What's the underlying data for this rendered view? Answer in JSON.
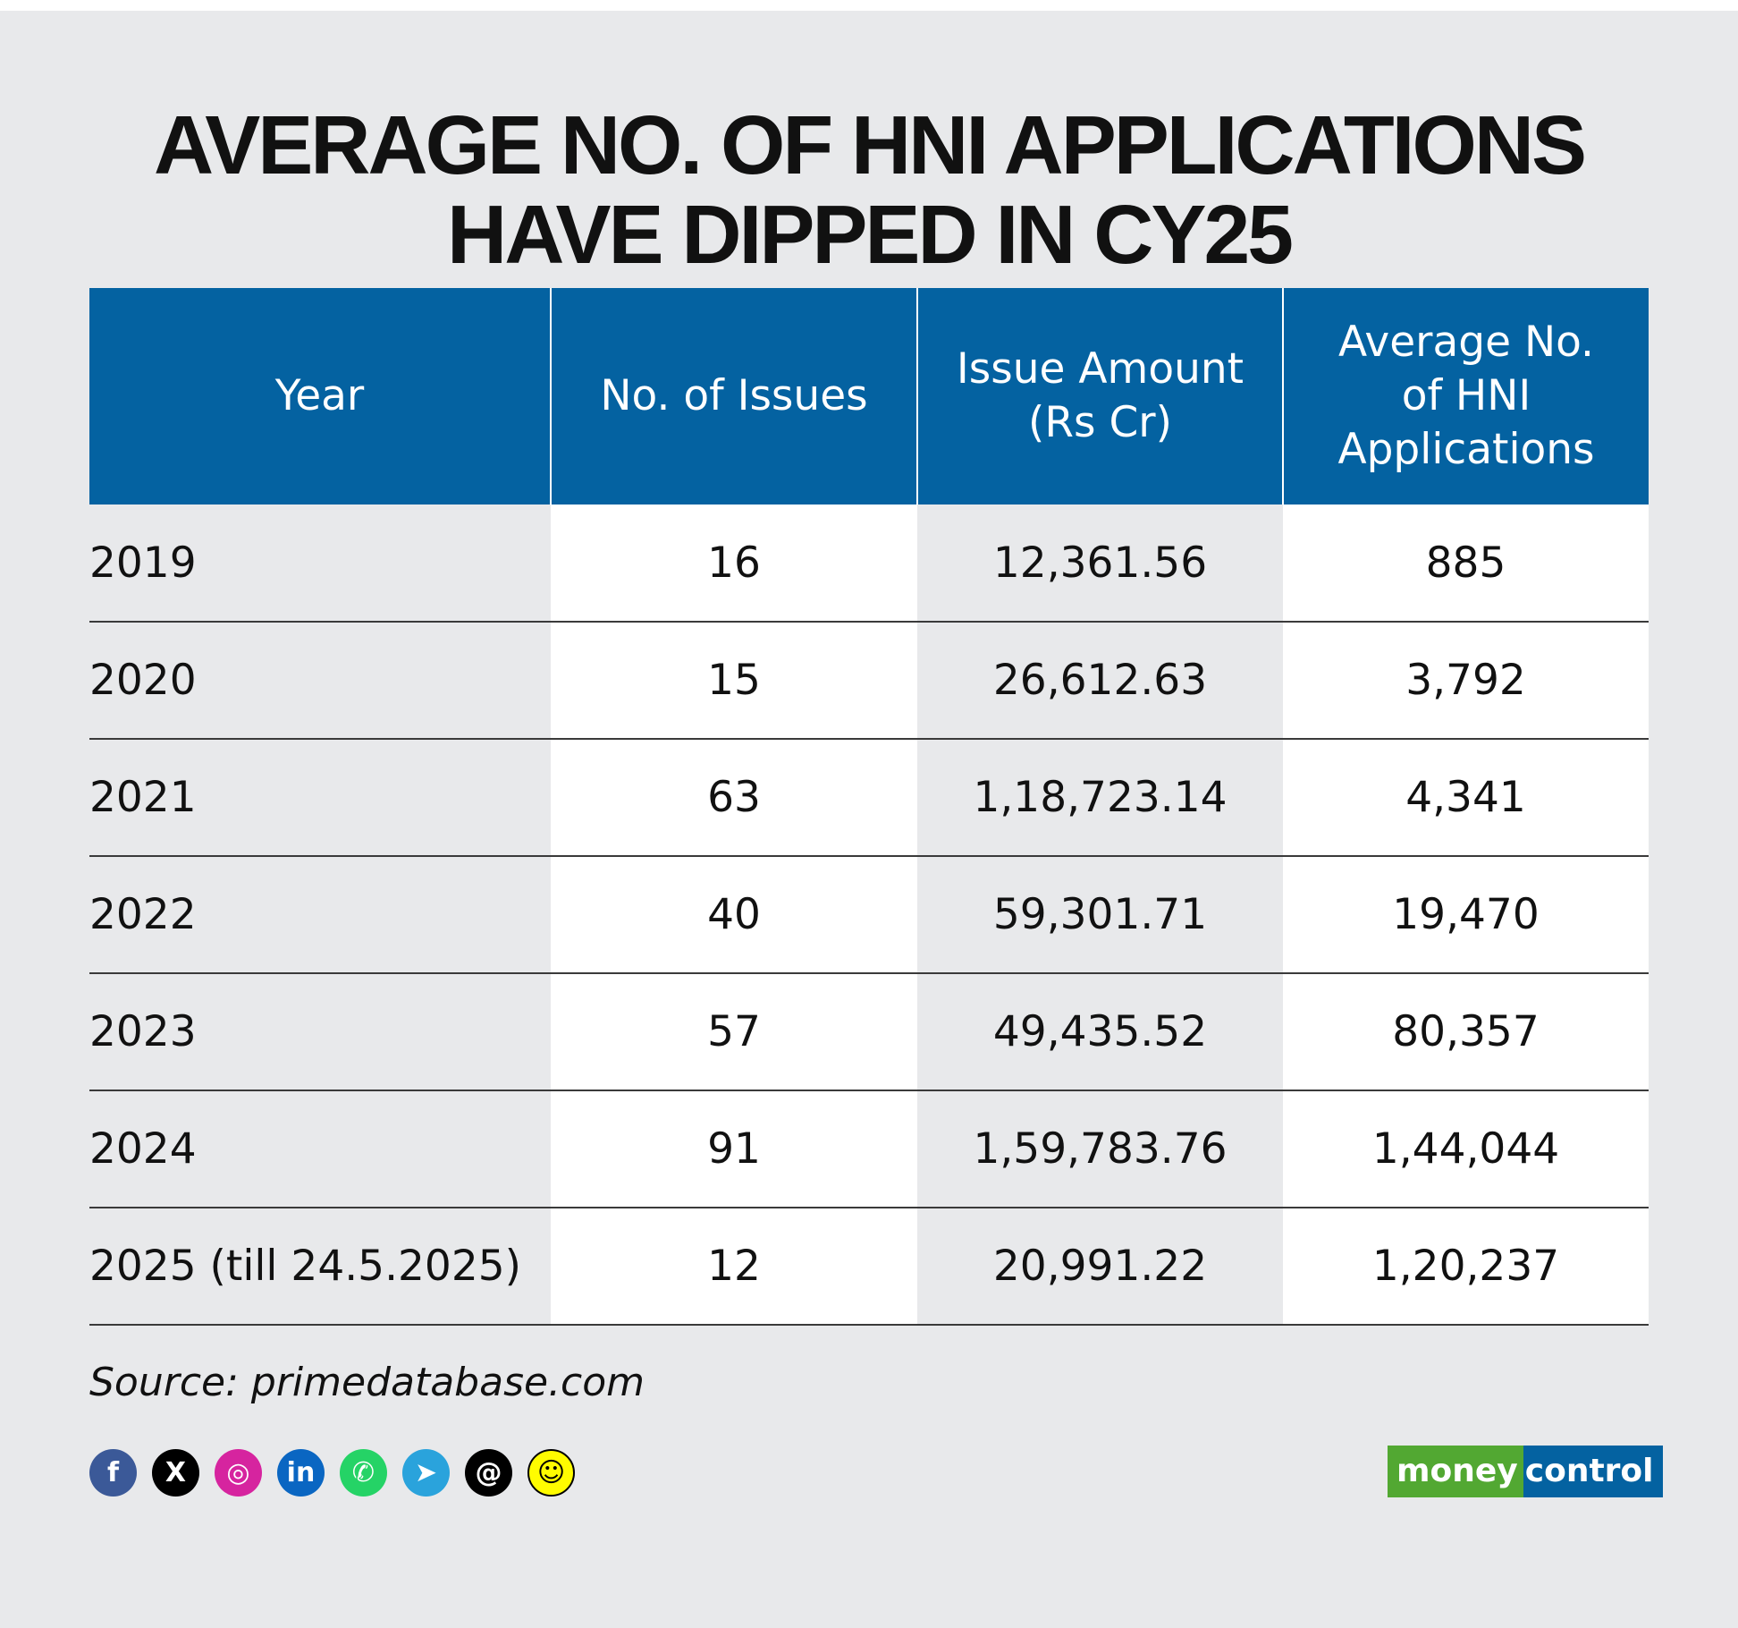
{
  "title": {
    "line1": "AVERAGE NO. OF HNI APPLICATIONS",
    "line2": "HAVE DIPPED IN CY25"
  },
  "chart_data": {
    "type": "table",
    "columns": [
      "Year",
      "No. of Issues",
      "Issue Amount (Rs Cr)",
      "Average No. of HNI Applications"
    ],
    "rows": [
      [
        "2019",
        "16",
        "12,361.56",
        "885"
      ],
      [
        "2020",
        "15",
        "26,612.63",
        "3,792"
      ],
      [
        "2021",
        "63",
        "1,18,723.14",
        "4,341"
      ],
      [
        "2022",
        "40",
        "59,301.71",
        "19,470"
      ],
      [
        "2023",
        "57",
        "49,435.52",
        "80,357"
      ],
      [
        "2024",
        "91",
        "1,59,783.76",
        "1,44,044"
      ],
      [
        "2025 (till 24.5.2025)",
        "12",
        "20,991.22",
        "1,20,237"
      ]
    ]
  },
  "header": {
    "col0": "Year",
    "col1": "No. of Issues",
    "col2_line1": "Issue Amount",
    "col2_line2": "(Rs Cr)",
    "col3_line1": "Average No.",
    "col3_line2": "of HNI",
    "col3_line3": "Applications"
  },
  "source": "Source: primedatabase.com",
  "social_icons": [
    {
      "name": "facebook-icon",
      "glyph": "f",
      "color": "#3b5998"
    },
    {
      "name": "x-icon",
      "glyph": "X",
      "color": "#000000"
    },
    {
      "name": "instagram-icon",
      "glyph": "◎",
      "color": "#d6249f"
    },
    {
      "name": "linkedin-icon",
      "glyph": "in",
      "color": "#0a66c2"
    },
    {
      "name": "whatsapp-icon",
      "glyph": "✆",
      "color": "#25d366"
    },
    {
      "name": "telegram-icon",
      "glyph": "➤",
      "color": "#2aa3dc"
    },
    {
      "name": "threads-icon",
      "glyph": "@",
      "color": "#000000"
    },
    {
      "name": "snapchat-icon",
      "glyph": "☺",
      "color": "#fffc00"
    }
  ],
  "logo": {
    "part1": "money",
    "part2": "control"
  }
}
